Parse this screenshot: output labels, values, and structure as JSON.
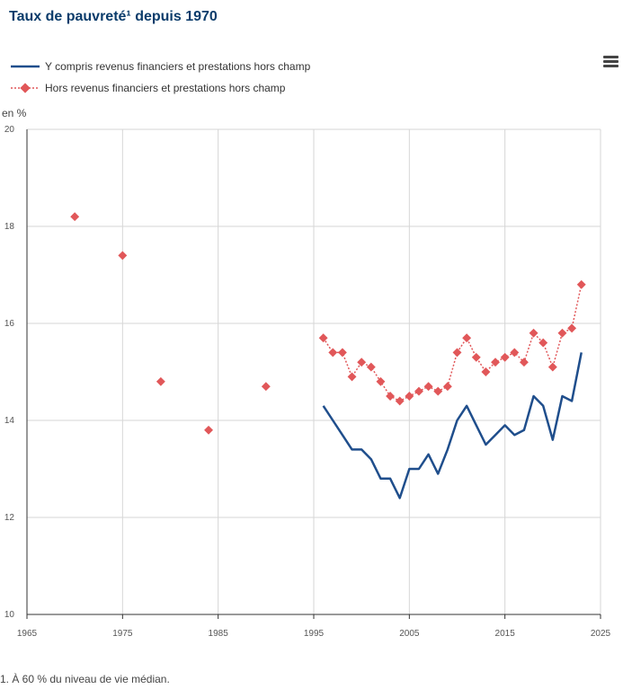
{
  "title": "Taux de pauvreté¹ depuis 1970",
  "menu_icon": "hamburger-menu-icon",
  "legend": [
    {
      "label": "Y compris revenus financiers et prestations hors champ",
      "color": "#1f4e8c",
      "style": "solid"
    },
    {
      "label": "Hors revenus financiers et prestations hors champ",
      "color": "#e15759",
      "style": "dotted-diamond"
    }
  ],
  "unit_label": "en %",
  "footnote": "1. À 60 % du niveau de vie médian.",
  "chart_data": {
    "type": "line",
    "xlim": [
      1965,
      2025
    ],
    "ylim": [
      10,
      20
    ],
    "x_ticks": [
      1965,
      1975,
      1985,
      1995,
      2005,
      2015,
      2025
    ],
    "y_ticks": [
      10,
      12,
      14,
      16,
      18,
      20
    ],
    "grid": true,
    "series": [
      {
        "name": "Y compris revenus financiers et prestations hors champ",
        "color": "#1f4e8c",
        "x": [
          1996,
          1997,
          1998,
          1999,
          2000,
          2001,
          2002,
          2003,
          2004,
          2005,
          2006,
          2007,
          2008,
          2009,
          2010,
          2011,
          2012,
          2013,
          2014,
          2015,
          2016,
          2017,
          2018,
          2019,
          2020,
          2021,
          2022,
          2023
        ],
        "values": [
          14.3,
          14.0,
          13.7,
          13.4,
          13.4,
          13.2,
          12.8,
          12.8,
          12.4,
          13.0,
          13.0,
          13.3,
          12.9,
          13.4,
          14.0,
          14.3,
          13.9,
          13.5,
          13.7,
          13.9,
          13.7,
          13.8,
          14.5,
          14.3,
          13.6,
          14.5,
          14.4,
          15.4
        ]
      },
      {
        "name": "Hors revenus financiers et prestations hors champ",
        "color": "#e15759",
        "x": [
          1970,
          1975,
          1979,
          1984,
          1990,
          1996,
          1997,
          1998,
          1999,
          2000,
          2001,
          2002,
          2003,
          2004,
          2005,
          2006,
          2007,
          2008,
          2009,
          2010,
          2011,
          2012,
          2013,
          2014,
          2015,
          2016,
          2017,
          2018,
          2019,
          2020,
          2021,
          2022,
          2023
        ],
        "values": [
          18.2,
          17.4,
          14.8,
          13.8,
          14.7,
          15.7,
          15.4,
          15.4,
          14.9,
          15.2,
          15.1,
          14.8,
          14.5,
          14.4,
          14.5,
          14.6,
          14.7,
          14.6,
          14.7,
          15.4,
          15.7,
          15.3,
          15.0,
          15.2,
          15.3,
          15.4,
          15.2,
          15.8,
          15.6,
          15.1,
          15.8,
          15.9,
          16.8
        ]
      }
    ]
  }
}
